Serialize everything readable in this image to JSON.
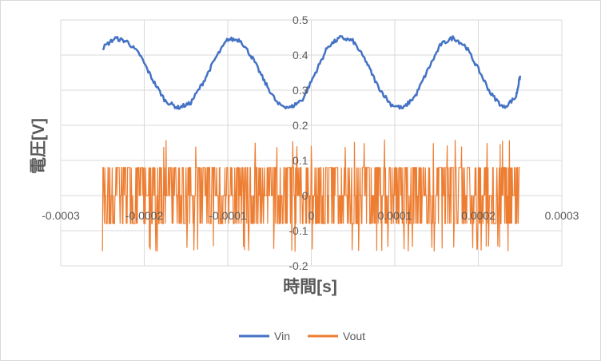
{
  "chart_data": {
    "type": "line",
    "title": "",
    "xlabel": "時間[s]",
    "ylabel": "電圧[V]",
    "xlim": [
      -0.0003,
      0.0003
    ],
    "ylim": [
      -0.2,
      0.5
    ],
    "x_ticks": [
      "-0.0003",
      "-0.0002",
      "-0.0001",
      "0",
      "0.0001",
      "0.0002",
      "0.0003"
    ],
    "y_ticks": [
      "-0.2",
      "-0.1",
      "0",
      "0.1",
      "0.2",
      "0.3",
      "0.4",
      "0.5"
    ],
    "grid": true,
    "legend_position": "bottom",
    "series": [
      {
        "name": "Vin",
        "color": "#4472c4",
        "x": [
          -0.00025,
          -0.000235,
          -0.00022,
          -0.000205,
          -0.00019,
          -0.000175,
          -0.00016,
          -0.000145,
          -0.00013,
          -0.000115,
          -0.0001,
          -8.5e-05,
          -7e-05,
          -5.5e-05,
          -4e-05,
          -2.5e-05,
          -1e-05,
          5e-06,
          2e-05,
          3.5e-05,
          5e-05,
          6.5e-05,
          8e-05,
          9.5e-05,
          0.00011,
          0.000125,
          0.00014,
          0.000155,
          0.00017,
          0.000185,
          0.0002,
          0.000215,
          0.00023,
          0.000245,
          0.00025
        ],
        "values": [
          0.42,
          0.448,
          0.438,
          0.4,
          0.33,
          0.27,
          0.25,
          0.262,
          0.32,
          0.39,
          0.445,
          0.443,
          0.39,
          0.32,
          0.26,
          0.25,
          0.275,
          0.35,
          0.425,
          0.45,
          0.44,
          0.385,
          0.31,
          0.26,
          0.248,
          0.285,
          0.36,
          0.43,
          0.45,
          0.425,
          0.36,
          0.29,
          0.25,
          0.28,
          0.34
        ]
      },
      {
        "name": "Vout",
        "color": "#ed7d31",
        "x_range": [
          -0.00025,
          0.00025
        ],
        "levels": [
          -0.08,
          0.0,
          0.08
        ],
        "spike_max": 0.16,
        "spike_min": -0.16
      }
    ]
  }
}
